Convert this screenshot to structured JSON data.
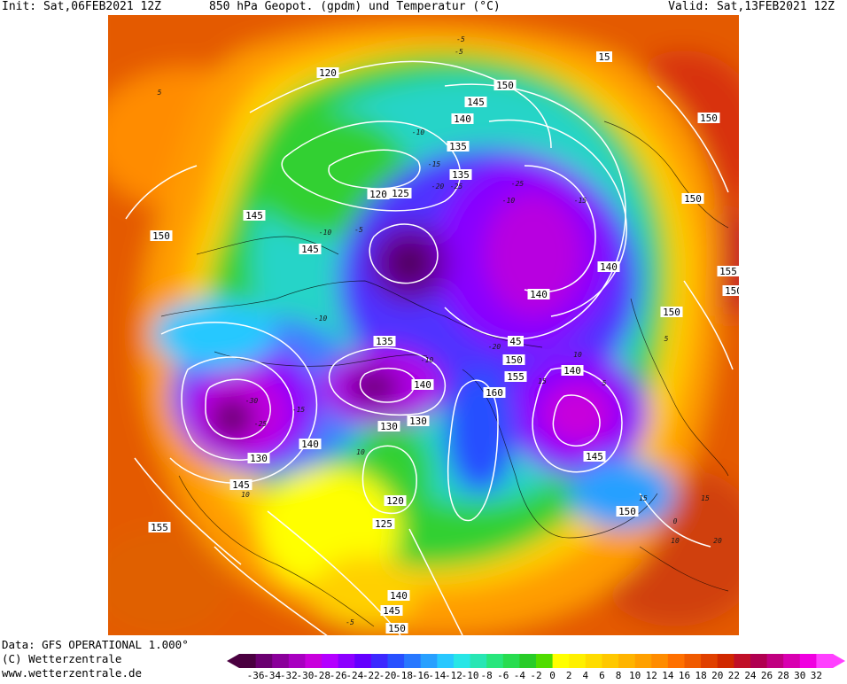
{
  "header": {
    "init": "Init: Sat,06FEB2021 12Z",
    "title": "850 hPa Geopot. (gpdm) und Temperatur (°C)",
    "valid": "Valid: Sat,13FEB2021 12Z"
  },
  "footer": {
    "data_source": "Data: GFS OPERATIONAL 1.000°",
    "copyright": "(C) Wetterzentrale",
    "url": "www.wetterzentrale.de"
  },
  "legend": {
    "ticks": [
      "-36",
      "-34",
      "-32",
      "-30",
      "-28",
      "-26",
      "-24",
      "-22",
      "-20",
      "-18",
      "-16",
      "-14",
      "-12",
      "-10",
      "-8",
      "-6",
      "-4",
      "-2",
      "0",
      "2",
      "4",
      "6",
      "8",
      "10",
      "12",
      "14",
      "16",
      "18",
      "20",
      "22",
      "24",
      "26",
      "28",
      "30",
      "32"
    ],
    "colors": [
      "#4a0040",
      "#6a0070",
      "#8a009a",
      "#a800c0",
      "#c800dc",
      "#b400ff",
      "#8c00ff",
      "#6400ff",
      "#3c28ff",
      "#2850ff",
      "#2878ff",
      "#28a0ff",
      "#28c8ff",
      "#28e6e6",
      "#28e6b4",
      "#28e67c",
      "#28dc50",
      "#28cc28",
      "#50dc00",
      "#ffff00",
      "#fff000",
      "#ffdc00",
      "#ffc800",
      "#ffb400",
      "#ffa000",
      "#ff8c00",
      "#ff7000",
      "#f05a00",
      "#e04000",
      "#d02800",
      "#c01028",
      "#b00050",
      "#c00080",
      "#d800b0",
      "#f000e0",
      "#ff40ff"
    ]
  },
  "geopotential_labels": [
    "120",
    "150",
    "15",
    "150",
    "145",
    "140",
    "135",
    "135",
    "120",
    "125",
    "150",
    "145",
    "145",
    "150",
    "140",
    "155",
    "150",
    "150",
    "140",
    "45",
    "135",
    "150",
    "140",
    "155",
    "160",
    "140",
    "145",
    "130",
    "130",
    "140",
    "130",
    "145",
    "135",
    "120",
    "155",
    "125",
    "140",
    "145",
    "150",
    "150"
  ],
  "temperature_labels": [
    "-5",
    "-10",
    "-15",
    "-20",
    "-25",
    "-10",
    "-15",
    "-10",
    "-5",
    "-25",
    "-30",
    "-25",
    "-15",
    "-10",
    "-10",
    "-20",
    "5",
    "10",
    "5",
    "10",
    "15",
    "20",
    "10",
    "15",
    "0",
    "5",
    "-5",
    "-5",
    "15",
    "10"
  ]
}
